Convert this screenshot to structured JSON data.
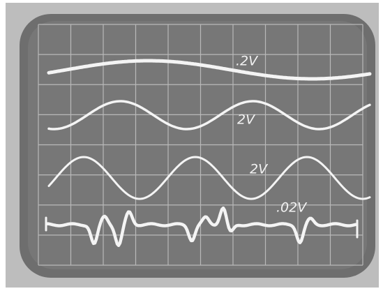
{
  "traces": [
    {
      "label": ".2V"
    },
    {
      "label": "2V"
    },
    {
      "label": "2V"
    },
    {
      "label": ".02V"
    }
  ]
}
